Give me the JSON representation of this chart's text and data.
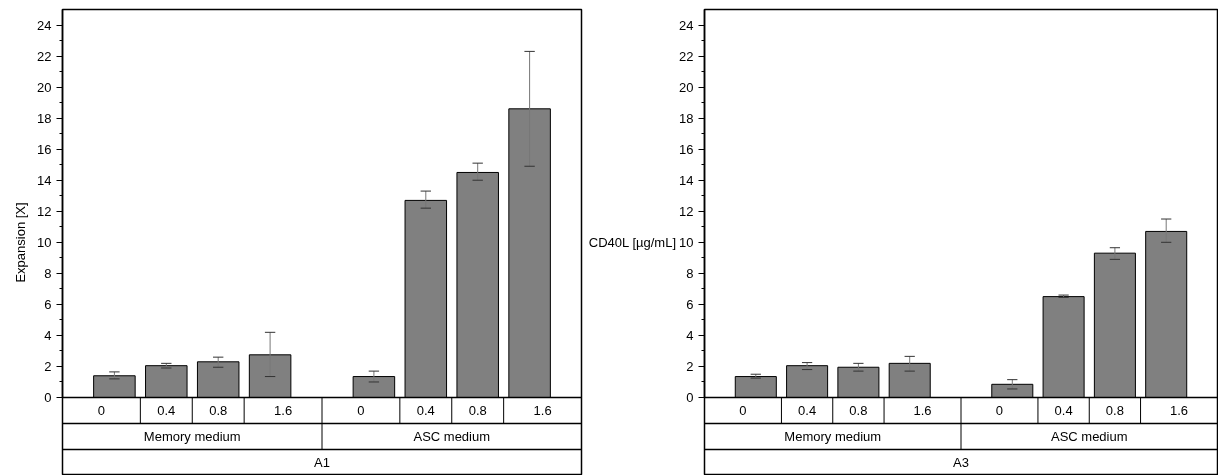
{
  "chart_data": [
    {
      "type": "bar",
      "ylabel": "Expansion [X]",
      "categories": [
        "0",
        "0.4",
        "0.8",
        "1.6",
        null,
        "0",
        "0.4",
        "0.8",
        "1.6"
      ],
      "values": [
        1.4,
        2.05,
        2.3,
        2.75,
        null,
        1.35,
        12.7,
        14.5,
        18.6
      ],
      "errors": [
        [
          1.2,
          1.65
        ],
        [
          1.9,
          2.2
        ],
        [
          1.95,
          2.6
        ],
        [
          1.35,
          4.2
        ],
        null,
        [
          1.0,
          1.7
        ],
        [
          12.2,
          13.3
        ],
        [
          14.0,
          15.1
        ],
        [
          14.9,
          22.3
        ]
      ],
      "color": "#808080",
      "ylim": [
        0,
        25
      ],
      "yticks": [
        0,
        {
          "value": 1,
          "label": null
        },
        2,
        {
          "value": 3,
          "label": null
        },
        4,
        {
          "value": 5,
          "label": null
        },
        6,
        {
          "value": 7,
          "label": null
        },
        8,
        {
          "value": 9,
          "label": null
        },
        10,
        {
          "value": 11,
          "label": null
        },
        12,
        {
          "value": 13,
          "label": null
        },
        14,
        {
          "value": 15,
          "label": null
        },
        16,
        {
          "value": 17,
          "label": null
        },
        18,
        {
          "value": 19,
          "label": null
        },
        20,
        {
          "value": 21,
          "label": null
        },
        22,
        {
          "value": 23,
          "label": null
        },
        24
      ],
      "annotations": [
        "Memory medium",
        "ASC medium",
        "A1"
      ]
    },
    {
      "type": "bar",
      "xlabel": "CD40L [µg/mL]",
      "categories": [
        "0",
        "0.4",
        "0.8",
        "1.6",
        null,
        "0",
        "0.4",
        "0.8",
        "1.6"
      ],
      "values": [
        1.35,
        2.05,
        1.95,
        2.2,
        null,
        0.85,
        6.5,
        9.3,
        10.7
      ],
      "errors": [
        [
          1.25,
          1.5
        ],
        [
          1.8,
          2.25
        ],
        [
          1.7,
          2.2
        ],
        [
          1.7,
          2.65
        ],
        null,
        [
          0.55,
          1.15
        ],
        [
          6.45,
          6.6
        ],
        [
          8.9,
          9.65
        ],
        [
          10.0,
          11.5
        ]
      ],
      "color": "#808080",
      "ylim": [
        0,
        25
      ],
      "yticks": [
        0,
        {
          "value": 1,
          "label": null
        },
        2,
        {
          "value": 3,
          "label": null
        },
        4,
        {
          "value": 5,
          "label": null
        },
        6,
        {
          "value": 7,
          "label": null
        },
        8,
        {
          "value": 9,
          "label": null
        },
        10,
        {
          "value": 11,
          "label": null
        },
        12,
        {
          "value": 13,
          "label": null
        },
        14,
        {
          "value": 15,
          "label": null
        },
        16,
        {
          "value": 17,
          "label": null
        },
        18,
        {
          "value": 19,
          "label": null
        },
        20,
        {
          "value": 21,
          "label": null
        },
        22,
        {
          "value": 23,
          "label": null
        },
        24
      ],
      "annotations": [
        "Memory medium",
        "ASC medium",
        "A3"
      ]
    }
  ]
}
